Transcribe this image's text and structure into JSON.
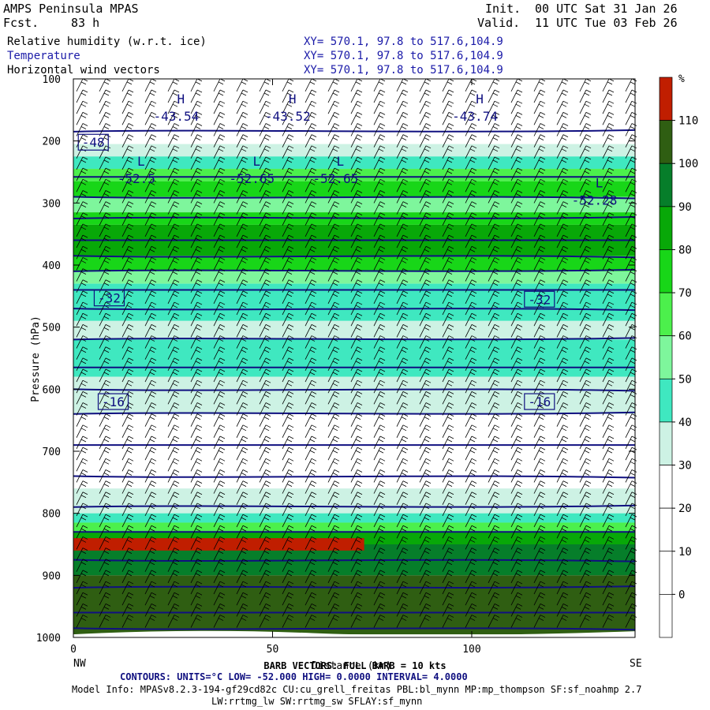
{
  "header": {
    "title": "AMPS Peninsula MPAS",
    "fcst_label": "Fcst.",
    "fcst_value": "83 h",
    "init_label": "Init.",
    "init_value": "00 UTC Sat 31 Jan 26",
    "valid_label": "Valid.",
    "valid_value": "11 UTC Tue 03 Feb 26"
  },
  "fields": [
    {
      "name": "Relative humidity (w.r.t. ice)",
      "xy": "XY= 570.1, 97.8 to 517.6,104.9",
      "color": "#000000"
    },
    {
      "name": "Temperature",
      "xy": "XY= 570.1, 97.8 to 517.6,104.9",
      "color": "#1a1aa8"
    },
    {
      "name": "Horizontal wind vectors",
      "xy": "XY= 570.1, 97.8 to 517.6,104.9",
      "color": "#000000"
    }
  ],
  "footer": {
    "barb_text": "BARB VECTORS: FULL BARB = 10 kts",
    "contours_text": "CONTOURS:  UNITS=°C  LOW= -52.000      HIGH=  0.0000      INTERVAL=    4.0000",
    "model_info_1": "Model Info: MPASv8.2.3-194-gf29cd82c CU:cu_grell_freitas PBL:bl_mynn MP:mp_thompson SF:sf_noahmp 2.7",
    "model_info_2": "LW:rrtmg_lw SW:rrtmg_sw SFLAY:sf_mynn"
  },
  "colors": {
    "contour": "#101080",
    "rh_10": "#ffffff",
    "rh_20": "#ffffff",
    "rh_30": "#cdf2e4",
    "rh_40": "#3fe8c0",
    "rh_50": "#7ef69c",
    "rh_60": "#4cf04c",
    "rh_70": "#18d618",
    "rh_80": "#08a808",
    "rh_90": "#067e2a",
    "rh_100": "#2f5e12",
    "rh_110": "#c01e00"
  },
  "chart_data": {
    "type": "cross-section",
    "xlabel": "Distance (km)",
    "ylabel": "Pressure (hPa)",
    "xlim": [
      0,
      141
    ],
    "ylim": [
      1000,
      100
    ],
    "x_ticks": [
      0,
      50,
      100
    ],
    "y_ticks": [
      100,
      200,
      300,
      400,
      500,
      600,
      700,
      800,
      900,
      1000
    ],
    "endpoints": {
      "left": "NW",
      "right": "SE"
    },
    "colorbar": {
      "unit": "%",
      "labels": [
        110,
        100,
        90,
        80,
        70,
        60,
        50,
        40,
        30,
        20,
        10,
        0
      ],
      "bins": [
        {
          "range": "100-110",
          "color": "#c01e00"
        },
        {
          "range": "100",
          "color": "#2f5e12"
        },
        {
          "range": "90-100",
          "color": "#067e2a"
        },
        {
          "range": "80-90",
          "color": "#08a808"
        },
        {
          "range": "70-80",
          "color": "#18d618"
        },
        {
          "range": "60-70",
          "color": "#4cf04c"
        },
        {
          "range": "50-60",
          "color": "#7ef69c"
        },
        {
          "range": "40-50",
          "color": "#3fe8c0"
        },
        {
          "range": "30-40",
          "color": "#cdf2e4"
        },
        {
          "range": "20-30",
          "color": "#ffffff"
        },
        {
          "range": "10-20",
          "color": "#ffffff"
        },
        {
          "range": "0-10",
          "color": "#ffffff"
        }
      ]
    },
    "rh_bands": [
      {
        "p_top": 205,
        "p_bot": 225,
        "rh": 30
      },
      {
        "p_top": 225,
        "p_bot": 245,
        "rh": 40
      },
      {
        "p_top": 245,
        "p_bot": 265,
        "rh": 60
      },
      {
        "p_top": 265,
        "p_bot": 290,
        "rh": 70
      },
      {
        "p_top": 290,
        "p_bot": 315,
        "rh": 50
      },
      {
        "p_top": 315,
        "p_bot": 335,
        "rh": 70
      },
      {
        "p_top": 335,
        "p_bot": 385,
        "rh": 80
      },
      {
        "p_top": 385,
        "p_bot": 410,
        "rh": 70
      },
      {
        "p_top": 410,
        "p_bot": 430,
        "rh": 50
      },
      {
        "p_top": 430,
        "p_bot": 490,
        "rh": 40
      },
      {
        "p_top": 490,
        "p_bot": 520,
        "rh": 30
      },
      {
        "p_top": 520,
        "p_bot": 580,
        "rh": 40
      },
      {
        "p_top": 580,
        "p_bot": 640,
        "rh": 30
      },
      {
        "p_top": 760,
        "p_bot": 800,
        "rh": 30
      },
      {
        "p_top": 800,
        "p_bot": 815,
        "rh": 40
      },
      {
        "p_top": 815,
        "p_bot": 830,
        "rh": 60
      },
      {
        "p_top": 830,
        "p_bot": 850,
        "rh": 80
      },
      {
        "p_top": 850,
        "p_bot": 900,
        "rh": 90
      },
      {
        "p_top": 900,
        "p_bot": 995,
        "rh": 100
      }
    ],
    "saturated_layer": {
      "x_start": 0,
      "x_end": 73,
      "p_top": 840,
      "p_bot": 860,
      "rh": 110
    },
    "temperature_labels": [
      {
        "text": "-48",
        "x": 5,
        "p": 202
      },
      {
        "text": "-32",
        "x": 9,
        "p": 453
      },
      {
        "text": "-32",
        "x": 117,
        "p": 455
      },
      {
        "text": "-16",
        "x": 10,
        "p": 620
      },
      {
        "text": "-16",
        "x": 117,
        "p": 620
      }
    ],
    "extrema": [
      {
        "type": "H",
        "value": "-43.54",
        "x": 27,
        "p": 165
      },
      {
        "type": "H",
        "value": "-43.52",
        "x": 55,
        "p": 165
      },
      {
        "type": "H",
        "value": "-43.74",
        "x": 102,
        "p": 165
      },
      {
        "type": "L",
        "value": "-52.5",
        "x": 17,
        "p": 265
      },
      {
        "type": "L",
        "value": "-52.65",
        "x": 46,
        "p": 265
      },
      {
        "type": "L",
        "value": "-52.65",
        "x": 67,
        "p": 265
      },
      {
        "type": "L",
        "value": "-52.28",
        "x": 132,
        "p": 300
      }
    ],
    "isotherms_p": [
      185,
      258,
      290,
      325,
      360,
      385,
      410,
      440,
      470,
      520,
      565,
      600,
      640,
      690,
      740,
      790,
      830,
      875,
      920,
      960,
      985
    ],
    "wind_columns": 25
  }
}
